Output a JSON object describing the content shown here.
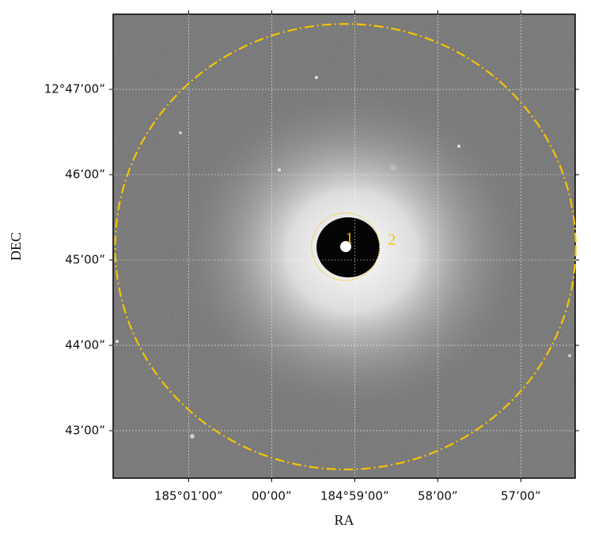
{
  "chart_data": {
    "type": "image",
    "x_label": "RA",
    "y_label": "DEC",
    "xlim": [
      185.0318,
      184.9391
    ],
    "ylim": [
      12.7074,
      12.798
    ],
    "xticks": [
      {
        "value": 185.016667,
        "label": "185°01’00”"
      },
      {
        "value": 185.0,
        "label": "00’00”"
      },
      {
        "value": 184.983333,
        "label": "184°59’00”"
      },
      {
        "value": 184.966667,
        "label": "58’00”"
      },
      {
        "value": 184.95,
        "label": "57’00”"
      }
    ],
    "yticks": [
      {
        "value": 12.783333,
        "label": "12°47’00”"
      },
      {
        "value": 12.766667,
        "label": "46’00”"
      },
      {
        "value": 12.75,
        "label": "45’00”"
      },
      {
        "value": 12.733333,
        "label": "44’00”"
      },
      {
        "value": 12.716667,
        "label": "43’00”"
      }
    ],
    "grid": true,
    "region_color": "#f5c400",
    "regions": [
      {
        "label": "1",
        "x": 184.9852,
        "y": 12.7526,
        "rx": 0.0068,
        "ry": 0.0066
      },
      {
        "label": "2",
        "x": 184.9852,
        "y": 12.7526,
        "rx": 0.0462,
        "ry": 0.0435
      }
    ]
  }
}
